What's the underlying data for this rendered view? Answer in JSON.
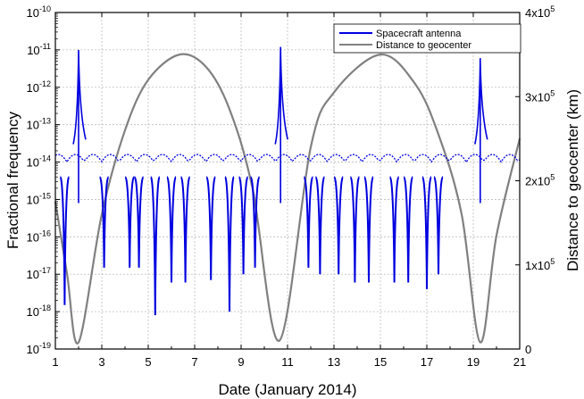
{
  "chart_data": {
    "type": "line",
    "xlabel": "Date (January 2014)",
    "ylabel_left": "Fractional frequency",
    "ylabel_right": "Distance to geocenter (km)",
    "x_ticks": [
      "1",
      "3",
      "5",
      "7",
      "9",
      "11",
      "13",
      "15",
      "17",
      "19",
      "21"
    ],
    "xlim": [
      1,
      21
    ],
    "y_left": {
      "scale": "log",
      "range": [
        1e-19,
        1e-10
      ],
      "tick_bases": [
        "10",
        "10",
        "10",
        "10",
        "10",
        "10",
        "10",
        "10",
        "10",
        "10"
      ],
      "tick_exponents": [
        "-19",
        "-18",
        "-17",
        "-16",
        "-15",
        "-14",
        "-13",
        "-12",
        "-11",
        "-10"
      ]
    },
    "y_right": {
      "scale": "linear",
      "range": [
        0,
        400000
      ],
      "tick_labels": [
        "0",
        "1x10",
        "2x10",
        "3x10",
        "4x10"
      ],
      "tick_exponents": [
        "",
        "5",
        "5",
        "5",
        "5"
      ]
    },
    "grid": true,
    "legend_position": "top-right",
    "series": [
      {
        "name": "Spacecraft antenna",
        "color": "#0000e0",
        "axis": "left",
        "style": "solid, dotted when off-contact",
        "spike_peaks": [
          {
            "x": 2.0,
            "y": 1e-11
          },
          {
            "x": 10.7,
            "y": 1.2e-11
          },
          {
            "x": 19.3,
            "y": 6e-12
          }
        ],
        "dip_minima": [
          {
            "x": 1.4,
            "y": 1.5e-18
          },
          {
            "x": 3.1,
            "y": 1.5e-17
          },
          {
            "x": 4.2,
            "y": 1.5e-17
          },
          {
            "x": 4.6,
            "y": 1.5e-17
          },
          {
            "x": 5.3,
            "y": 8e-19
          },
          {
            "x": 6.0,
            "y": 6e-18
          },
          {
            "x": 6.6,
            "y": 6e-18
          },
          {
            "x": 7.7,
            "y": 7e-18
          },
          {
            "x": 8.5,
            "y": 1e-18
          },
          {
            "x": 9.1,
            "y": 1e-17
          },
          {
            "x": 9.6,
            "y": 1.5e-17
          },
          {
            "x": 11.9,
            "y": 1.5e-17
          },
          {
            "x": 12.4,
            "y": 1e-17
          },
          {
            "x": 13.2,
            "y": 1e-17
          },
          {
            "x": 13.9,
            "y": 6e-18
          },
          {
            "x": 14.5,
            "y": 6e-18
          },
          {
            "x": 15.6,
            "y": 6e-18
          },
          {
            "x": 16.2,
            "y": 6e-18
          },
          {
            "x": 17.0,
            "y": 4e-18
          },
          {
            "x": 17.5,
            "y": 1e-17
          }
        ]
      },
      {
        "name": "Distance to geocenter",
        "color": "#808080",
        "axis": "right",
        "points": [
          {
            "x": 1.0,
            "y": 175000
          },
          {
            "x": 1.5,
            "y": 90000
          },
          {
            "x": 2.0,
            "y": 8000
          },
          {
            "x": 3.0,
            "y": 160000
          },
          {
            "x": 4.0,
            "y": 260000
          },
          {
            "x": 5.0,
            "y": 320000
          },
          {
            "x": 6.35,
            "y": 350000
          },
          {
            "x": 7.5,
            "y": 335000
          },
          {
            "x": 8.5,
            "y": 285000
          },
          {
            "x": 9.5,
            "y": 190000
          },
          {
            "x": 10.65,
            "y": 10000
          },
          {
            "x": 12.0,
            "y": 240000
          },
          {
            "x": 13.0,
            "y": 305000
          },
          {
            "x": 15.0,
            "y": 350000
          },
          {
            "x": 16.5,
            "y": 315000
          },
          {
            "x": 17.5,
            "y": 255000
          },
          {
            "x": 18.5,
            "y": 160000
          },
          {
            "x": 19.3,
            "y": 8000
          },
          {
            "x": 20.0,
            "y": 135000
          },
          {
            "x": 21.0,
            "y": 250000
          }
        ]
      }
    ]
  }
}
